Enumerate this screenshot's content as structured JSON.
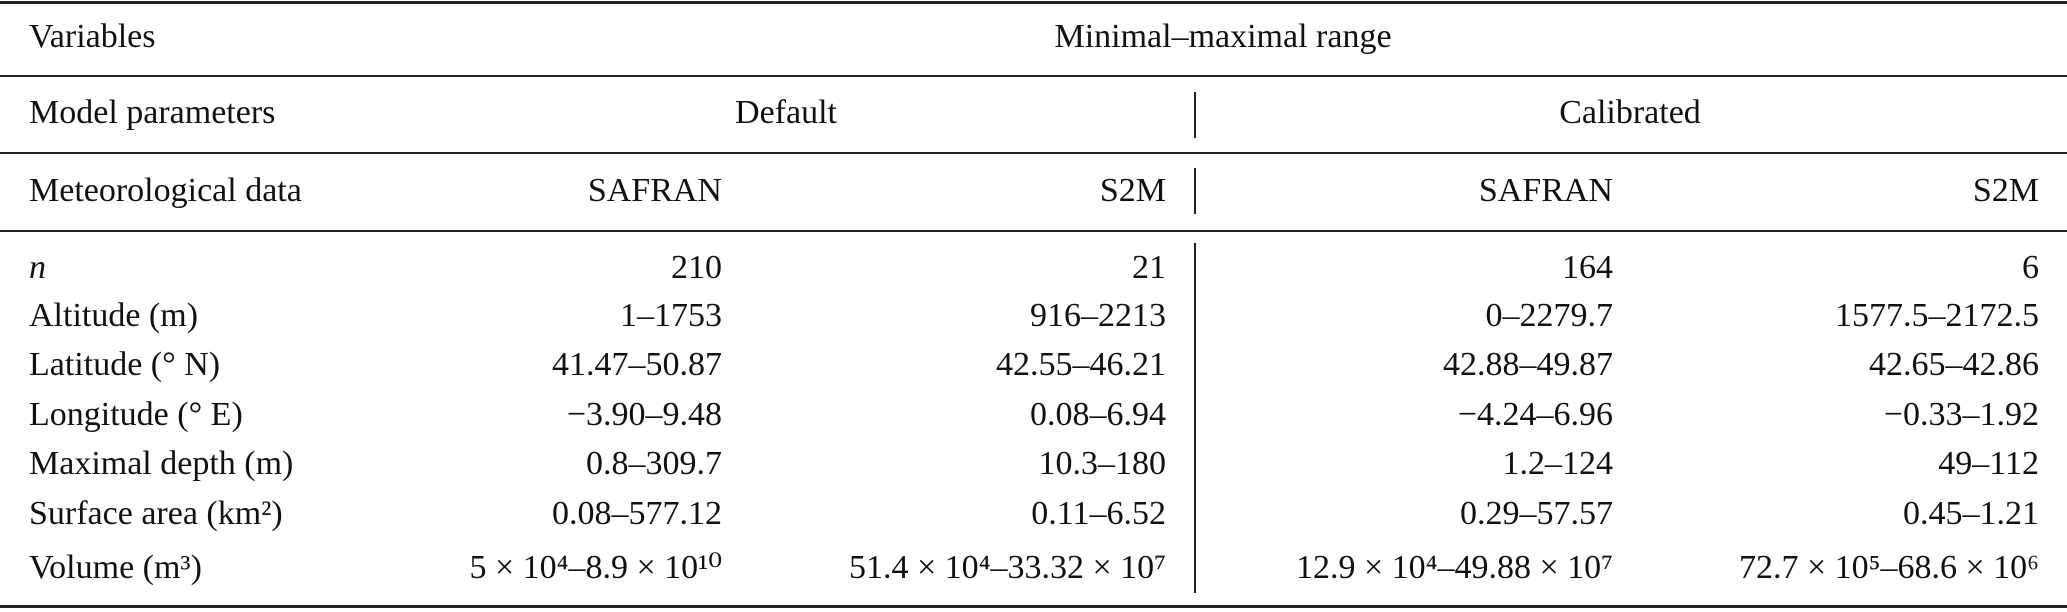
{
  "header": {
    "variables": "Variables",
    "range": "Minimal–maximal range"
  },
  "parameters": {
    "label": "Model parameters",
    "default": "Default",
    "calibrated": "Calibrated"
  },
  "meteo": {
    "label": "Meteorological data",
    "columns": [
      "SAFRAN",
      "S2M",
      "SAFRAN",
      "S2M"
    ]
  },
  "table": {
    "rows": [
      [
        "n",
        "210",
        "21",
        "164",
        "6"
      ],
      [
        "Altitude (m)",
        "1–1753",
        "916–2213",
        "0–2279.7",
        "1577.5–2172.5"
      ],
      [
        "Latitude (° N)",
        "41.47–50.87",
        "42.55–46.21",
        "42.88–49.87",
        "42.65–42.86"
      ],
      [
        "Longitude (° E)",
        "−3.90–9.48",
        "0.08–6.94",
        "−4.24–6.96",
        "−0.33–1.92"
      ],
      [
        "Maximal depth (m)",
        "0.8–309.7",
        "10.3–180",
        "1.2–124",
        "49–112"
      ],
      [
        "Surface area (km²)",
        "0.08–577.12",
        "0.11–6.52",
        "0.29–57.57",
        "0.45–1.21"
      ],
      [
        "Volume (m³)",
        "5 × 10⁴–8.9 × 10¹⁰",
        "51.4 × 10⁴–33.32 × 10⁷",
        "12.9 × 10⁴–49.88 × 10⁷",
        "72.7 × 10⁵–68.6 × 10⁶"
      ]
    ]
  }
}
